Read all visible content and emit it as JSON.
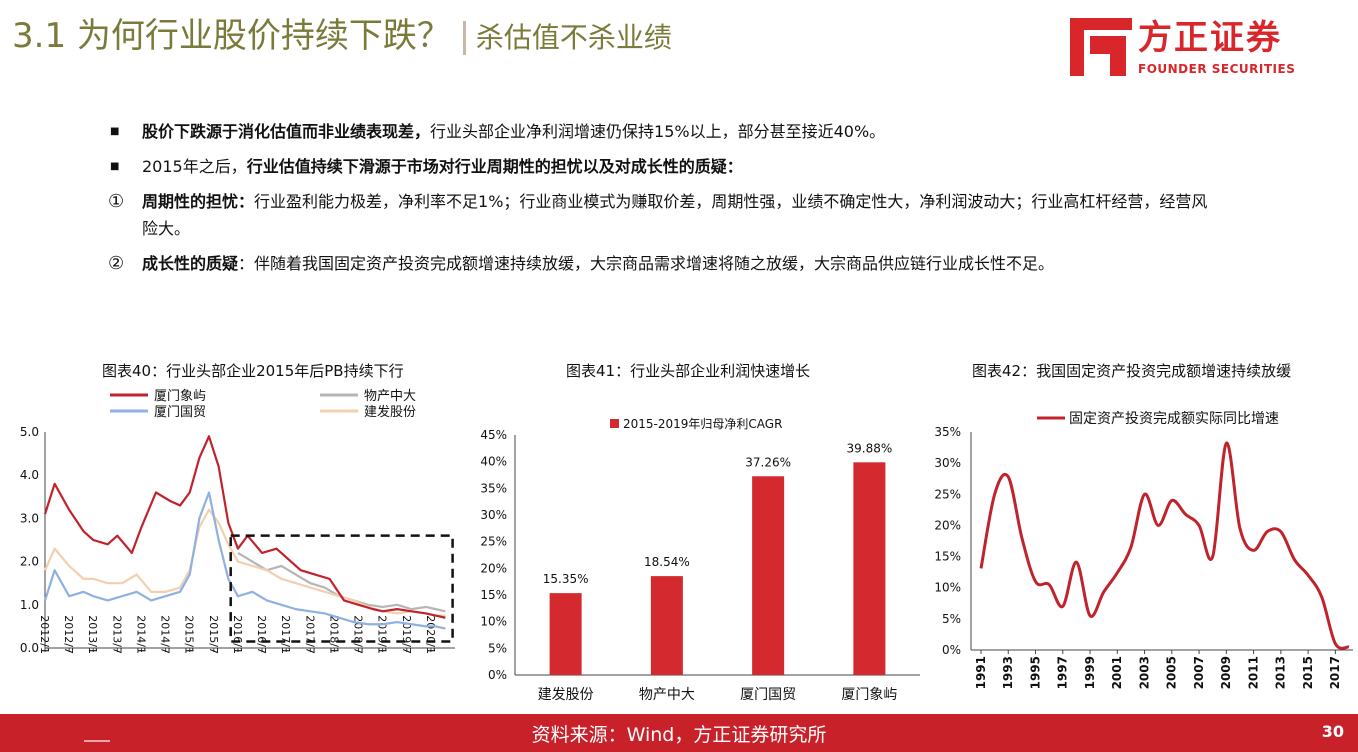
{
  "header": {
    "title": "3.1 为何行业股价持续下跌？",
    "subtitle": "杀估值不杀业绩",
    "logo_cn": "方正证券",
    "logo_en": "FOUNDER SECURITIES"
  },
  "bullets": [
    {
      "marker": "■",
      "bold": "股价下跌源于消化估值而非业绩表现差，",
      "text": "行业头部企业净利润增速仍保持15%以上，部分甚至接近40%。"
    },
    {
      "marker": "■",
      "pre": "2015年之后，",
      "bold": "行业估值持续下滑源于市场对行业周期性的担忧以及对成长性的质疑：",
      "text": ""
    },
    {
      "marker": "①",
      "bold": "周期性的担忧：",
      "text": "行业盈利能力极差，净利率不足1%；行业商业模式为赚取价差，周期性强，业绩不确定性大，净利润波动大；行业高杠杆经营，经营风险大。"
    },
    {
      "marker": "②",
      "bold": "成长性的质疑",
      "text": "：伴随着我国固定资产投资完成额增速持续放缓，大宗商品需求增速将随之放缓，大宗商品供应链行业成长性不足。"
    }
  ],
  "charts_titles": [
    "图表40：行业头部企业2015年后PB持续下行",
    "图表41：行业头部企业利润快速增长",
    "图表42：我国固定资产投资完成额增速持续放缓"
  ],
  "chart_data": [
    {
      "type": "line",
      "title": "图表40：行业头部企业2015年后PB持续下行",
      "x_ticks": [
        "2012/1",
        "2012/7",
        "2013/1",
        "2013/7",
        "2014/1",
        "2014/7",
        "2015/1",
        "2015/7",
        "2016/1",
        "2016/7",
        "2017/1",
        "2017/7",
        "2018/1",
        "2018/7",
        "2019/1",
        "2019/7",
        "2020/1"
      ],
      "x_range": [
        2012.0,
        2020.5
      ],
      "ylim": [
        0,
        5
      ],
      "y_ticks": [
        "0.0",
        "1.0",
        "2.0",
        "3.0",
        "4.0",
        "5.0"
      ],
      "legend": [
        "厦门象屿",
        "物产中大",
        "厦门国贸",
        "建发股份"
      ],
      "colors": [
        "#c0232b",
        "#b5b5b5",
        "#8fb0e0",
        "#f2cfae"
      ],
      "series": [
        {
          "name": "厦门象屿",
          "x": [
            2012.0,
            2012.2,
            2012.5,
            2012.8,
            2013.0,
            2013.3,
            2013.5,
            2013.8,
            2014.0,
            2014.3,
            2014.6,
            2014.8,
            2015.0,
            2015.2,
            2015.4,
            2015.6,
            2015.8,
            2016.0,
            2016.2,
            2016.5,
            2016.8,
            2017.0,
            2017.3,
            2017.6,
            2017.9,
            2018.2,
            2018.5,
            2018.8,
            2019.0,
            2019.3,
            2019.6,
            2019.9,
            2020.1,
            2020.3
          ],
          "y": [
            3.1,
            3.8,
            3.2,
            2.7,
            2.5,
            2.4,
            2.6,
            2.2,
            2.8,
            3.6,
            3.4,
            3.3,
            3.6,
            4.4,
            4.9,
            4.2,
            2.9,
            2.3,
            2.6,
            2.2,
            2.3,
            2.1,
            1.8,
            1.7,
            1.6,
            1.1,
            1.0,
            0.9,
            0.85,
            0.9,
            0.85,
            0.8,
            0.75,
            0.7
          ]
        },
        {
          "name": "物产中大",
          "x": [
            2016.0,
            2016.3,
            2016.6,
            2016.9,
            2017.2,
            2017.5,
            2017.8,
            2018.1,
            2018.4,
            2018.7,
            2019.0,
            2019.3,
            2019.6,
            2019.9,
            2020.1,
            2020.3
          ],
          "y": [
            2.2,
            2.0,
            1.8,
            1.9,
            1.7,
            1.5,
            1.4,
            1.2,
            1.1,
            1.0,
            0.95,
            1.0,
            0.9,
            0.95,
            0.9,
            0.85
          ]
        },
        {
          "name": "厦门国贸",
          "x": [
            2012.0,
            2012.2,
            2012.5,
            2012.8,
            2013.0,
            2013.3,
            2013.6,
            2013.9,
            2014.2,
            2014.5,
            2014.8,
            2015.0,
            2015.2,
            2015.4,
            2015.6,
            2015.8,
            2016.0,
            2016.3,
            2016.6,
            2016.9,
            2017.2,
            2017.5,
            2017.8,
            2018.1,
            2018.4,
            2018.7,
            2019.0,
            2019.3,
            2019.6,
            2019.9,
            2020.1,
            2020.3
          ],
          "y": [
            1.1,
            1.8,
            1.2,
            1.3,
            1.2,
            1.1,
            1.2,
            1.3,
            1.1,
            1.2,
            1.3,
            1.7,
            3.0,
            3.6,
            2.5,
            1.6,
            1.2,
            1.3,
            1.1,
            1.0,
            0.9,
            0.85,
            0.8,
            0.7,
            0.6,
            0.55,
            0.55,
            0.6,
            0.55,
            0.5,
            0.5,
            0.45
          ]
        },
        {
          "name": "建发股份",
          "x": [
            2012.0,
            2012.2,
            2012.5,
            2012.8,
            2013.0,
            2013.3,
            2013.6,
            2013.9,
            2014.2,
            2014.5,
            2014.8,
            2015.0,
            2015.2,
            2015.4,
            2015.6,
            2015.8,
            2016.0,
            2016.3,
            2016.6,
            2016.9,
            2017.2,
            2017.5,
            2017.8,
            2018.1,
            2018.4,
            2018.7,
            2019.0,
            2019.3,
            2019.6,
            2019.9,
            2020.1,
            2020.3
          ],
          "y": [
            1.8,
            2.3,
            1.9,
            1.6,
            1.6,
            1.5,
            1.5,
            1.7,
            1.3,
            1.3,
            1.4,
            1.8,
            2.8,
            3.2,
            2.9,
            2.4,
            2.0,
            1.9,
            1.8,
            1.6,
            1.5,
            1.4,
            1.3,
            1.2,
            1.1,
            0.95,
            0.85,
            0.8,
            0.85,
            0.8,
            0.75,
            0.75
          ]
        }
      ],
      "annotation": "dashed box highlighting 2016-2020"
    },
    {
      "type": "bar",
      "title": "图表41：行业头部企业利润快速增长",
      "categories": [
        "建发股份",
        "物产中大",
        "厦门国贸",
        "厦门象屿"
      ],
      "values": [
        15.35,
        18.54,
        37.26,
        39.88
      ],
      "labels": [
        "15.35%",
        "18.54%",
        "37.26%",
        "39.88%"
      ],
      "legend": "2015-2019年归母净利CAGR",
      "color": "#d42a2f",
      "ylim": [
        0,
        45
      ],
      "y_ticks": [
        "0%",
        "5%",
        "10%",
        "15%",
        "20%",
        "25%",
        "30%",
        "35%",
        "40%",
        "45%"
      ]
    },
    {
      "type": "line",
      "title": "图表42：我国固定资产投资完成额增速持续放缓",
      "legend": "固定资产投资完成额实际同比增速",
      "color": "#c0232b",
      "x_ticks": [
        "1991",
        "1993",
        "1995",
        "1997",
        "1999",
        "2001",
        "2003",
        "2005",
        "2007",
        "2009",
        "2011",
        "2013",
        "2015",
        "2017"
      ],
      "x": [
        1991,
        1992,
        1993,
        1994,
        1995,
        1996,
        1997,
        1998,
        1999,
        2000,
        2001,
        2002,
        2003,
        2004,
        2005,
        2006,
        2007,
        2008,
        2009,
        2010,
        2011,
        2012,
        2013,
        2014,
        2015,
        2016,
        2017,
        2018
      ],
      "y": [
        13.1,
        25.0,
        27.8,
        18.0,
        11.0,
        10.5,
        7.0,
        14.1,
        5.5,
        9.3,
        12.4,
        16.5,
        25.0,
        20.0,
        24.0,
        21.8,
        20.0,
        15.0,
        33.2,
        19.5,
        16.0,
        19.0,
        19.0,
        14.5,
        12.0,
        8.5,
        1.0,
        0.5
      ],
      "ylim": [
        0,
        35
      ],
      "y_ticks": [
        "0%",
        "5%",
        "10%",
        "15%",
        "20%",
        "25%",
        "30%",
        "35%"
      ]
    }
  ],
  "footer": {
    "source": "资料来源：Wind，方正证券研究所",
    "page": "30"
  }
}
